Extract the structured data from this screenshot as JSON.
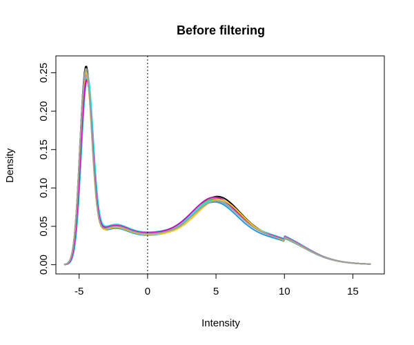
{
  "chart_data": {
    "type": "line",
    "title": "Before filtering",
    "xlabel": "Intensity",
    "ylabel": "Density",
    "xlim": [
      -6.7,
      17.3
    ],
    "ylim": [
      -0.012,
      0.272
    ],
    "x_ticks": [
      -5,
      0,
      5,
      10,
      15
    ],
    "x_tick_labels": [
      "-5",
      "0",
      "5",
      "10",
      "15"
    ],
    "y_ticks": [
      0.0,
      0.05,
      0.1,
      0.15,
      0.2,
      0.25
    ],
    "y_tick_labels": [
      "0.00",
      "0.05",
      "0.10",
      "0.15",
      "0.20",
      "0.25"
    ],
    "grid": false,
    "legend": "none",
    "reference_line": {
      "x": 0,
      "style": "dotted",
      "color": "#000000"
    },
    "series": [
      {
        "color": "#000000",
        "peak1": 0.26,
        "peak1_x": -4.5,
        "trough": 0.04,
        "peak2": 0.085,
        "peak2_x": 5.1
      },
      {
        "color": "#df536b",
        "peak1": 0.25,
        "peak1_x": -4.45,
        "trough": 0.041,
        "peak2": 0.082,
        "peak2_x": 5.0
      },
      {
        "color": "#61d04f",
        "peak1": 0.255,
        "peak1_x": -4.5,
        "trough": 0.04,
        "peak2": 0.083,
        "peak2_x": 5.0
      },
      {
        "color": "#2297e6",
        "peak1": 0.245,
        "peak1_x": -4.4,
        "trough": 0.038,
        "peak2": 0.078,
        "peak2_x": 4.9
      },
      {
        "color": "#28e2e5",
        "peak1": 0.248,
        "peak1_x": -4.4,
        "trough": 0.042,
        "peak2": 0.08,
        "peak2_x": 4.95
      },
      {
        "color": "#cd0bbc",
        "peak1": 0.242,
        "peak1_x": -4.45,
        "trough": 0.041,
        "peak2": 0.084,
        "peak2_x": 4.9
      },
      {
        "color": "#f5c710",
        "peak1": 0.252,
        "peak1_x": -4.5,
        "trough": 0.039,
        "peak2": 0.081,
        "peak2_x": 5.2
      },
      {
        "color": "#9e9e9e",
        "peak1": 0.257,
        "peak1_x": -4.5,
        "trough": 0.04,
        "peak2": 0.079,
        "peak2_x": 5.0
      }
    ]
  }
}
